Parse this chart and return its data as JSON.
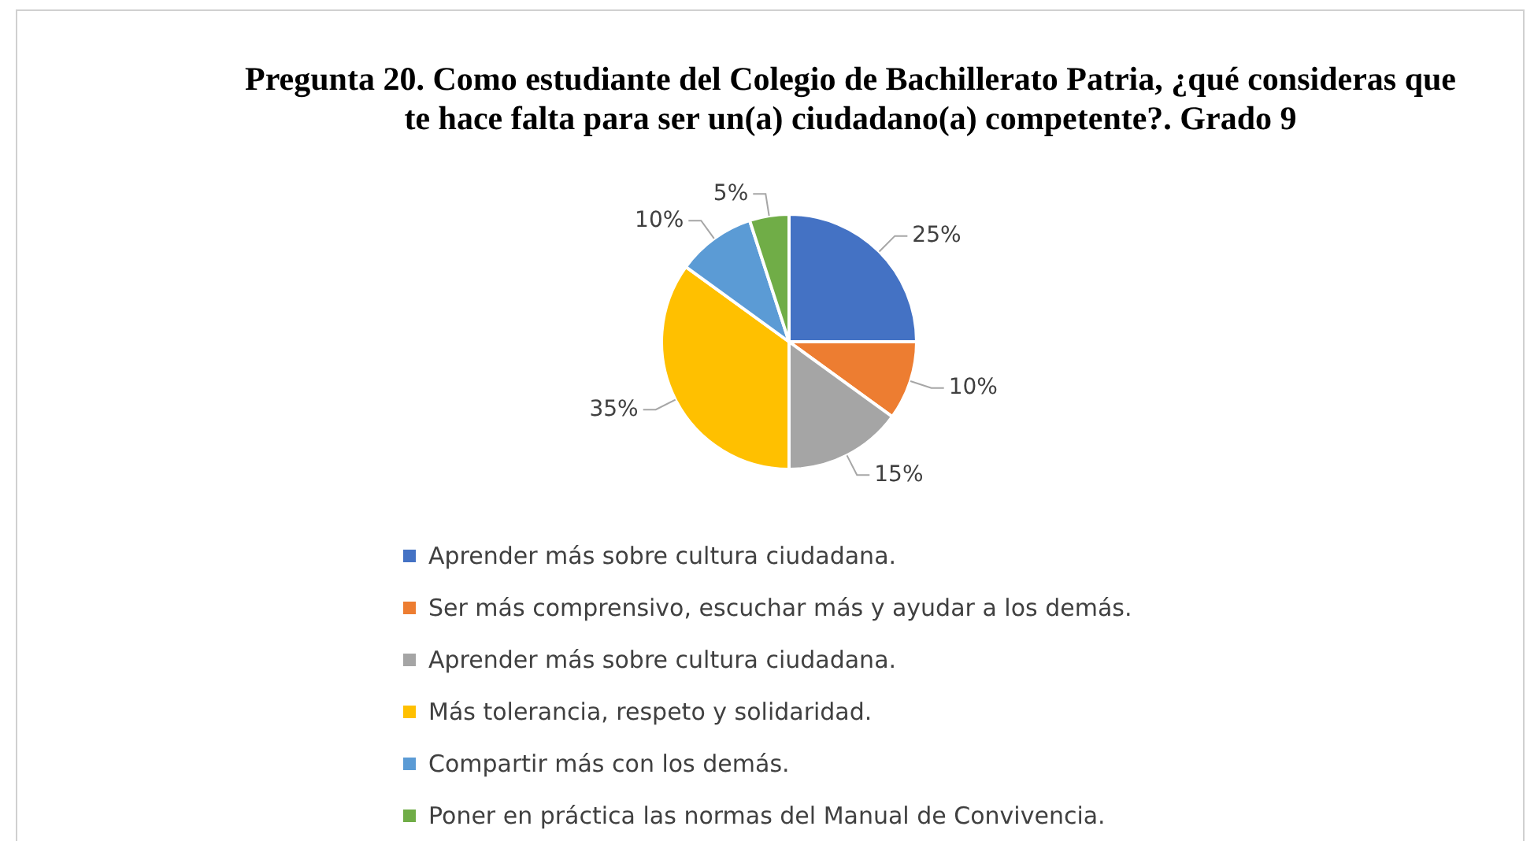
{
  "chart_data": {
    "type": "pie",
    "title": "Pregunta 20. Como estudiante del Colegio de Bachillerato Patria, ¿qué consideras que te hace falta para ser un(a) ciudadano(a) competente?. Grado 9",
    "categories": [
      "Aprender más sobre cultura ciudadana.",
      "Ser más comprensivo, escuchar más y ayudar a los demás.",
      "Aprender más sobre cultura ciudadana.",
      "Más tolerancia, respeto y solidaridad.",
      "Compartir más con los demás.",
      "Poner en práctica las normas del Manual de Convivencia."
    ],
    "values": [
      25,
      10,
      15,
      35,
      10,
      5
    ],
    "colors": [
      "#4472c4",
      "#ed7d31",
      "#a5a5a5",
      "#ffc000",
      "#5b9bd5",
      "#70ad47"
    ],
    "value_labels": [
      "25%",
      "10%",
      "15%",
      "35%",
      "10%",
      "5%"
    ],
    "legend": "bottom"
  }
}
